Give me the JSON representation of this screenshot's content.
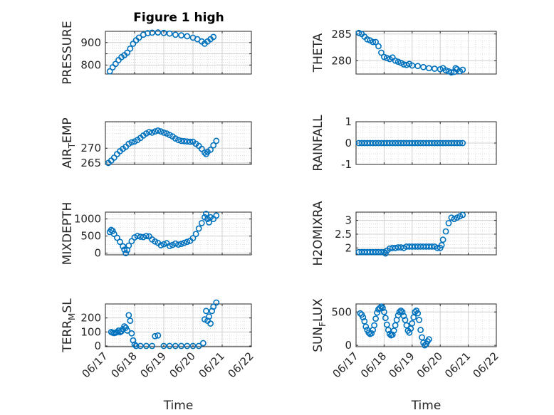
{
  "figure": {
    "title": "Figure 1 high",
    "marker_color": "#0072BD",
    "axes_color": "#262626",
    "grid_color": "#d9d9d9"
  },
  "chart_data": [
    {
      "id": "pressure",
      "type": "scatter",
      "title": "Figure 1 high",
      "ylabel": "PRESSURE",
      "xlabel": "",
      "xlim": [
        0,
        5
      ],
      "ylim": [
        760,
        950
      ],
      "yticks": [
        800,
        850,
        900
      ],
      "ytick_labels": [
        "800",
        "",
        "900"
      ],
      "xticks": [
        0,
        1,
        2,
        3,
        4,
        5
      ],
      "xtick_labels": [],
      "grid": true,
      "points": [
        [
          0.15,
          772
        ],
        [
          0.25,
          790
        ],
        [
          0.35,
          805
        ],
        [
          0.45,
          822
        ],
        [
          0.55,
          835
        ],
        [
          0.65,
          844
        ],
        [
          0.75,
          855
        ],
        [
          0.85,
          873
        ],
        [
          0.95,
          895
        ],
        [
          1.05,
          910
        ],
        [
          1.15,
          922
        ],
        [
          1.3,
          935
        ],
        [
          1.45,
          942
        ],
        [
          1.6,
          944
        ],
        [
          1.8,
          945
        ],
        [
          2.0,
          943
        ],
        [
          2.2,
          940
        ],
        [
          2.4,
          935
        ],
        [
          2.6,
          932
        ],
        [
          2.8,
          928
        ],
        [
          3.0,
          922
        ],
        [
          3.15,
          915
        ],
        [
          3.3,
          905
        ],
        [
          3.4,
          895
        ],
        [
          3.5,
          905
        ],
        [
          3.6,
          915
        ],
        [
          3.7,
          925
        ]
      ]
    },
    {
      "id": "theta",
      "type": "scatter",
      "ylabel": "THETA",
      "xlabel": "",
      "xlim": [
        0,
        5
      ],
      "ylim": [
        277.5,
        285.5
      ],
      "yticks": [
        280,
        285
      ],
      "ytick_labels": [
        "280",
        "285"
      ],
      "xticks": [
        0,
        1,
        2,
        3,
        4,
        5
      ],
      "xtick_labels": [],
      "grid": true,
      "points": [
        [
          0.1,
          285.2
        ],
        [
          0.2,
          285
        ],
        [
          0.3,
          284.5
        ],
        [
          0.4,
          284
        ],
        [
          0.5,
          283.8
        ],
        [
          0.6,
          283.5
        ],
        [
          0.7,
          283.5
        ],
        [
          0.8,
          282.7
        ],
        [
          0.9,
          281.5
        ],
        [
          1.0,
          280.7
        ],
        [
          1.1,
          280.5
        ],
        [
          1.2,
          280.3
        ],
        [
          1.3,
          280.6
        ],
        [
          1.4,
          280
        ],
        [
          1.5,
          279.8
        ],
        [
          1.6,
          279.6
        ],
        [
          1.7,
          279.3
        ],
        [
          1.8,
          279.2
        ],
        [
          1.9,
          279.4
        ],
        [
          2.0,
          279.1
        ],
        [
          2.2,
          279
        ],
        [
          2.4,
          278.8
        ],
        [
          2.6,
          278.6
        ],
        [
          2.8,
          278.5
        ],
        [
          3.0,
          278.4
        ],
        [
          3.1,
          278.6
        ],
        [
          3.2,
          278.2
        ],
        [
          3.3,
          278
        ],
        [
          3.4,
          277.8
        ],
        [
          3.5,
          277.9
        ],
        [
          3.55,
          278.6
        ],
        [
          3.6,
          278.4
        ],
        [
          3.7,
          278
        ],
        [
          3.8,
          278.3
        ]
      ]
    },
    {
      "id": "air_temp",
      "type": "scatter",
      "ylabel": "AIR_TEMP",
      "xlabel": "",
      "xlim": [
        0,
        5
      ],
      "ylim": [
        264.5,
        279
      ],
      "yticks": [
        265,
        270
      ],
      "ytick_labels": [
        "265",
        "270"
      ],
      "xticks": [
        0,
        1,
        2,
        3,
        4,
        5
      ],
      "xtick_labels": [],
      "grid": true,
      "points": [
        [
          0.1,
          265
        ],
        [
          0.2,
          265.8
        ],
        [
          0.3,
          266.8
        ],
        [
          0.4,
          268
        ],
        [
          0.5,
          269
        ],
        [
          0.6,
          269.8
        ],
        [
          0.7,
          270.5
        ],
        [
          0.8,
          271.5
        ],
        [
          0.9,
          272
        ],
        [
          1.0,
          272.3
        ],
        [
          1.1,
          272.8
        ],
        [
          1.2,
          273.5
        ],
        [
          1.3,
          274.3
        ],
        [
          1.4,
          275
        ],
        [
          1.5,
          275.5
        ],
        [
          1.6,
          275.3
        ],
        [
          1.7,
          275.7
        ],
        [
          1.8,
          276
        ],
        [
          1.9,
          275.7
        ],
        [
          2.0,
          275.3
        ],
        [
          2.1,
          275
        ],
        [
          2.2,
          274.5
        ],
        [
          2.3,
          274
        ],
        [
          2.4,
          273.3
        ],
        [
          2.5,
          272.8
        ],
        [
          2.6,
          272.5
        ],
        [
          2.7,
          272.4
        ],
        [
          2.8,
          272.3
        ],
        [
          2.9,
          272.2
        ],
        [
          3.0,
          272.2
        ],
        [
          3.1,
          271.5
        ],
        [
          3.2,
          270.8
        ],
        [
          3.3,
          269.8
        ],
        [
          3.4,
          268.5
        ],
        [
          3.45,
          268
        ],
        [
          3.5,
          268.8
        ],
        [
          3.6,
          269.5
        ],
        [
          3.7,
          271
        ],
        [
          3.8,
          272.5
        ]
      ]
    },
    {
      "id": "rainfall",
      "type": "scatter",
      "ylabel": "RAINFALL",
      "xlabel": "",
      "xlim": [
        0,
        5
      ],
      "ylim": [
        -1,
        1
      ],
      "yticks": [
        -1,
        0,
        1
      ],
      "ytick_labels": [
        "-1",
        "0",
        "1"
      ],
      "xticks": [
        0,
        1,
        2,
        3,
        4,
        5
      ],
      "xtick_labels": [],
      "grid": true,
      "points": [
        [
          0.1,
          0
        ],
        [
          0.2,
          0
        ],
        [
          0.3,
          0
        ],
        [
          0.4,
          0
        ],
        [
          0.5,
          0
        ],
        [
          0.6,
          0
        ],
        [
          0.7,
          0
        ],
        [
          0.8,
          0
        ],
        [
          0.9,
          0
        ],
        [
          1.0,
          0
        ],
        [
          1.1,
          0
        ],
        [
          1.2,
          0
        ],
        [
          1.3,
          0
        ],
        [
          1.4,
          0
        ],
        [
          1.5,
          0
        ],
        [
          1.6,
          0
        ],
        [
          1.7,
          0
        ],
        [
          1.8,
          0
        ],
        [
          1.9,
          0
        ],
        [
          2.0,
          0
        ],
        [
          2.1,
          0
        ],
        [
          2.2,
          0
        ],
        [
          2.3,
          0
        ],
        [
          2.4,
          0
        ],
        [
          2.5,
          0
        ],
        [
          2.6,
          0
        ],
        [
          2.7,
          0
        ],
        [
          2.8,
          0
        ],
        [
          2.9,
          0
        ],
        [
          3.0,
          0
        ],
        [
          3.1,
          0
        ],
        [
          3.2,
          0
        ],
        [
          3.3,
          0
        ],
        [
          3.4,
          0
        ],
        [
          3.5,
          0
        ],
        [
          3.6,
          0
        ],
        [
          3.7,
          0
        ],
        [
          3.8,
          0
        ]
      ]
    },
    {
      "id": "mixdepth",
      "type": "scatter",
      "ylabel": "MIXDEPTH",
      "xlabel": "",
      "xlim": [
        0,
        5
      ],
      "ylim": [
        -50,
        1200
      ],
      "yticks": [
        0,
        500,
        1000
      ],
      "ytick_labels": [
        "0",
        "500",
        "1000"
      ],
      "xticks": [
        0,
        1,
        2,
        3,
        4,
        5
      ],
      "xtick_labels": [],
      "grid": true,
      "points": [
        [
          0.15,
          620
        ],
        [
          0.2,
          680
        ],
        [
          0.25,
          650
        ],
        [
          0.3,
          560
        ],
        [
          0.4,
          450
        ],
        [
          0.5,
          330
        ],
        [
          0.6,
          200
        ],
        [
          0.65,
          100
        ],
        [
          0.7,
          0
        ],
        [
          0.75,
          90
        ],
        [
          0.8,
          220
        ],
        [
          0.9,
          350
        ],
        [
          1.0,
          460
        ],
        [
          1.1,
          500
        ],
        [
          1.2,
          480
        ],
        [
          1.3,
          470
        ],
        [
          1.4,
          500
        ],
        [
          1.5,
          490
        ],
        [
          1.6,
          400
        ],
        [
          1.7,
          340
        ],
        [
          1.8,
          300
        ],
        [
          1.9,
          230
        ],
        [
          2.0,
          260
        ],
        [
          2.1,
          290
        ],
        [
          2.2,
          210
        ],
        [
          2.3,
          240
        ],
        [
          2.4,
          280
        ],
        [
          2.5,
          250
        ],
        [
          2.6,
          270
        ],
        [
          2.7,
          300
        ],
        [
          2.8,
          330
        ],
        [
          2.9,
          360
        ],
        [
          3.0,
          440
        ],
        [
          3.1,
          560
        ],
        [
          3.2,
          720
        ],
        [
          3.3,
          880
        ],
        [
          3.4,
          1050
        ],
        [
          3.45,
          1150
        ],
        [
          3.5,
          1000
        ],
        [
          3.55,
          900
        ],
        [
          3.6,
          1050
        ],
        [
          3.7,
          1000
        ],
        [
          3.8,
          1100
        ]
      ]
    },
    {
      "id": "h2omixra",
      "type": "scatter",
      "ylabel": "H2OMIXRA",
      "xlabel": "",
      "xlim": [
        0,
        5
      ],
      "ylim": [
        1.75,
        3.3
      ],
      "yticks": [
        2,
        2.5,
        3
      ],
      "ytick_labels": [
        "2",
        "2.5",
        "3"
      ],
      "xticks": [
        0,
        1,
        2,
        3,
        4,
        5
      ],
      "xtick_labels": [],
      "grid": true,
      "points": [
        [
          0.1,
          1.85
        ],
        [
          0.2,
          1.85
        ],
        [
          0.3,
          1.85
        ],
        [
          0.4,
          1.85
        ],
        [
          0.5,
          1.85
        ],
        [
          0.6,
          1.85
        ],
        [
          0.7,
          1.85
        ],
        [
          0.8,
          1.85
        ],
        [
          0.9,
          1.85
        ],
        [
          1.0,
          1.85
        ],
        [
          1.05,
          1.8
        ],
        [
          1.1,
          1.9
        ],
        [
          1.2,
          1.98
        ],
        [
          1.3,
          2.0
        ],
        [
          1.4,
          2.0
        ],
        [
          1.5,
          2.02
        ],
        [
          1.6,
          2.02
        ],
        [
          1.7,
          2.0
        ],
        [
          1.8,
          2.05
        ],
        [
          1.9,
          2.05
        ],
        [
          2.0,
          2.05
        ],
        [
          2.1,
          2.05
        ],
        [
          2.2,
          2.05
        ],
        [
          2.3,
          2.05
        ],
        [
          2.4,
          2.05
        ],
        [
          2.5,
          2.05
        ],
        [
          2.6,
          2.05
        ],
        [
          2.7,
          2.05
        ],
        [
          2.8,
          2.05
        ],
        [
          2.9,
          2.0
        ],
        [
          3.0,
          2.0
        ],
        [
          3.05,
          2.1
        ],
        [
          3.1,
          2.3
        ],
        [
          3.2,
          2.6
        ],
        [
          3.3,
          2.9
        ],
        [
          3.4,
          3.1
        ],
        [
          3.5,
          3.05
        ],
        [
          3.6,
          3.1
        ],
        [
          3.7,
          3.15
        ],
        [
          3.8,
          3.2
        ]
      ]
    },
    {
      "id": "terr_msl",
      "type": "scatter",
      "ylabel": "TERR_MSL",
      "xlabel": "Time",
      "xlim": [
        0,
        5
      ],
      "ylim": [
        -5,
        300
      ],
      "yticks": [
        0,
        100,
        200
      ],
      "ytick_labels": [
        "0",
        "100",
        "200"
      ],
      "xticks": [
        0,
        1,
        2,
        3,
        4,
        5
      ],
      "xtick_labels": [
        "06/17",
        "06/18",
        "06/19",
        "06/20",
        "06/21",
        "06/22"
      ],
      "grid": true,
      "points": [
        [
          0.2,
          100
        ],
        [
          0.25,
          95
        ],
        [
          0.3,
          92
        ],
        [
          0.35,
          95
        ],
        [
          0.4,
          100
        ],
        [
          0.45,
          110
        ],
        [
          0.5,
          98
        ],
        [
          0.55,
          105
        ],
        [
          0.6,
          120
        ],
        [
          0.65,
          140
        ],
        [
          0.7,
          130
        ],
        [
          0.75,
          110
        ],
        [
          0.8,
          220
        ],
        [
          0.85,
          180
        ],
        [
          0.9,
          90
        ],
        [
          0.95,
          40
        ],
        [
          1.0,
          10
        ],
        [
          1.05,
          0
        ],
        [
          1.2,
          0
        ],
        [
          1.4,
          0
        ],
        [
          1.6,
          0
        ],
        [
          1.7,
          70
        ],
        [
          1.8,
          75
        ],
        [
          2.0,
          0
        ],
        [
          2.2,
          0
        ],
        [
          2.4,
          0
        ],
        [
          2.6,
          0
        ],
        [
          2.8,
          0
        ],
        [
          3.0,
          0
        ],
        [
          3.2,
          0
        ],
        [
          3.35,
          20
        ],
        [
          3.4,
          190
        ],
        [
          3.45,
          250
        ],
        [
          3.5,
          180
        ],
        [
          3.55,
          210
        ],
        [
          3.6,
          160
        ],
        [
          3.65,
          250
        ],
        [
          3.7,
          280
        ],
        [
          3.8,
          310
        ]
      ]
    },
    {
      "id": "sun_flux",
      "type": "scatter",
      "ylabel": "SUN_FLUX",
      "xlabel": "Time",
      "xlim": [
        0,
        5
      ],
      "ylim": [
        -20,
        620
      ],
      "yticks": [
        0,
        500
      ],
      "ytick_labels": [
        "0",
        "500"
      ],
      "xticks": [
        0,
        1,
        2,
        3,
        4,
        5
      ],
      "xtick_labels": [
        "06/17",
        "06/18",
        "06/19",
        "06/20",
        "06/21",
        "06/22"
      ],
      "grid": true,
      "points": [
        [
          0.15,
          480
        ],
        [
          0.2,
          460
        ],
        [
          0.25,
          420
        ],
        [
          0.3,
          360
        ],
        [
          0.35,
          280
        ],
        [
          0.4,
          230
        ],
        [
          0.45,
          190
        ],
        [
          0.5,
          170
        ],
        [
          0.55,
          180
        ],
        [
          0.6,
          230
        ],
        [
          0.65,
          300
        ],
        [
          0.7,
          400
        ],
        [
          0.75,
          490
        ],
        [
          0.8,
          540
        ],
        [
          0.85,
          560
        ],
        [
          0.9,
          580
        ],
        [
          0.95,
          560
        ],
        [
          1.0,
          500
        ],
        [
          1.05,
          410
        ],
        [
          1.1,
          310
        ],
        [
          1.15,
          230
        ],
        [
          1.2,
          170
        ],
        [
          1.25,
          150
        ],
        [
          1.3,
          160
        ],
        [
          1.35,
          220
        ],
        [
          1.4,
          300
        ],
        [
          1.45,
          380
        ],
        [
          1.5,
          450
        ],
        [
          1.55,
          500
        ],
        [
          1.6,
          520
        ],
        [
          1.65,
          500
        ],
        [
          1.7,
          440
        ],
        [
          1.75,
          380
        ],
        [
          1.8,
          300
        ],
        [
          1.85,
          220
        ],
        [
          1.9,
          190
        ],
        [
          1.95,
          250
        ],
        [
          2.0,
          330
        ],
        [
          2.05,
          420
        ],
        [
          2.1,
          500
        ],
        [
          2.15,
          520
        ],
        [
          2.2,
          480
        ],
        [
          2.25,
          380
        ],
        [
          2.3,
          230
        ],
        [
          2.35,
          120
        ],
        [
          2.4,
          40
        ],
        [
          2.45,
          0
        ],
        [
          2.5,
          20
        ],
        [
          2.55,
          60
        ],
        [
          2.6,
          90
        ]
      ]
    }
  ]
}
